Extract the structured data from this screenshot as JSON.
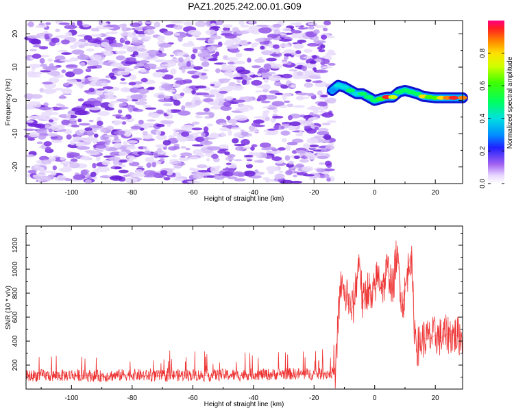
{
  "figure": {
    "title": "PAZ1.2025.242.00.01.G09"
  },
  "colors": {
    "snr_line": "#ee3333",
    "spectrogram_noise": "#8a33e6",
    "axis": "#000000"
  },
  "chart_data": [
    {
      "type": "heatmap",
      "title": "PAZ1.2025.242.00.01.G09",
      "xlabel": "Height of straight line (km)",
      "ylabel": "Frequency (Hz)",
      "xlim": [
        -115,
        29
      ],
      "ylim": [
        -25,
        24
      ],
      "xticks": [
        "-100",
        "-80",
        "-60",
        "-40",
        "-20",
        "0",
        "20"
      ],
      "xtick_values": [
        -100,
        -80,
        -60,
        -40,
        -20,
        0,
        20
      ],
      "yticks": [
        "20",
        "10",
        "0",
        "-10",
        "-20"
      ],
      "ytick_values": [
        20,
        10,
        0,
        -10,
        -20
      ],
      "noise_region_km": [
        -115,
        -15
      ],
      "signal_trace": {
        "x_km": [
          -14,
          -12,
          -10,
          -8,
          -6,
          -4,
          -2,
          0,
          2,
          4,
          6,
          8,
          10,
          12,
          14,
          16,
          18,
          20,
          22,
          24,
          26,
          29
        ],
        "freq_hz": [
          3,
          4.5,
          4,
          3,
          2,
          2,
          1,
          0,
          0.5,
          1,
          1,
          2.5,
          3,
          2.5,
          2,
          1.2,
          1,
          0.8,
          0.8,
          0.8,
          0.8,
          0.8
        ],
        "amplitude": [
          0.35,
          0.4,
          0.45,
          0.5,
          0.45,
          0.55,
          0.6,
          0.5,
          0.7,
          0.95,
          0.75,
          0.6,
          0.5,
          0.55,
          0.6,
          0.8,
          0.7,
          0.65,
          0.85,
          0.9,
          0.95,
          0.9
        ]
      },
      "colorbar": {
        "label": "Normalized spectral amplitude",
        "range": [
          0.0,
          1.0
        ],
        "ticks": [
          "0.0",
          "0.2",
          "0.4",
          "0.6",
          "0.8"
        ],
        "tick_values": [
          0.0,
          0.2,
          0.4,
          0.6,
          0.8
        ]
      }
    },
    {
      "type": "line",
      "xlabel": "Height of straight line (km)",
      "ylabel": "SNR (10 * v/v)",
      "xlim": [
        -115,
        29
      ],
      "ylim": [
        0,
        1360
      ],
      "xticks": [
        "-100",
        "-80",
        "-60",
        "-40",
        "-20",
        "0",
        "20"
      ],
      "xtick_values": [
        -100,
        -80,
        -60,
        -40,
        -20,
        0,
        20
      ],
      "yticks": [
        "200",
        "400",
        "600",
        "800",
        "1000",
        "1200"
      ],
      "ytick_values": [
        200,
        400,
        600,
        800,
        1000,
        1200
      ],
      "series": [
        {
          "name": "SNR",
          "x": [
            -115,
            -110,
            -105,
            -100,
            -95,
            -90,
            -85,
            -80,
            -75,
            -70,
            -65,
            -60,
            -55,
            -50,
            -45,
            -40,
            -35,
            -30,
            -25,
            -20,
            -15,
            -13,
            -12,
            -11,
            -10,
            -9,
            -8,
            -7,
            -6,
            -5,
            -4,
            -3,
            -2,
            -1,
            0,
            1,
            2,
            3,
            4,
            5,
            6,
            7,
            8,
            9,
            10,
            11,
            12,
            13,
            14,
            15,
            16,
            18,
            20,
            22,
            24,
            26,
            29
          ],
          "values": [
            110,
            115,
            110,
            118,
            112,
            108,
            115,
            120,
            112,
            110,
            115,
            118,
            112,
            120,
            115,
            125,
            120,
            130,
            125,
            125,
            130,
            150,
            600,
            900,
            750,
            800,
            650,
            700,
            900,
            1100,
            700,
            800,
            850,
            700,
            850,
            950,
            900,
            850,
            1000,
            950,
            800,
            1100,
            1000,
            700,
            800,
            1000,
            1150,
            550,
            350,
            380,
            420,
            420,
            450,
            430,
            460,
            450,
            440
          ]
        }
      ]
    }
  ]
}
